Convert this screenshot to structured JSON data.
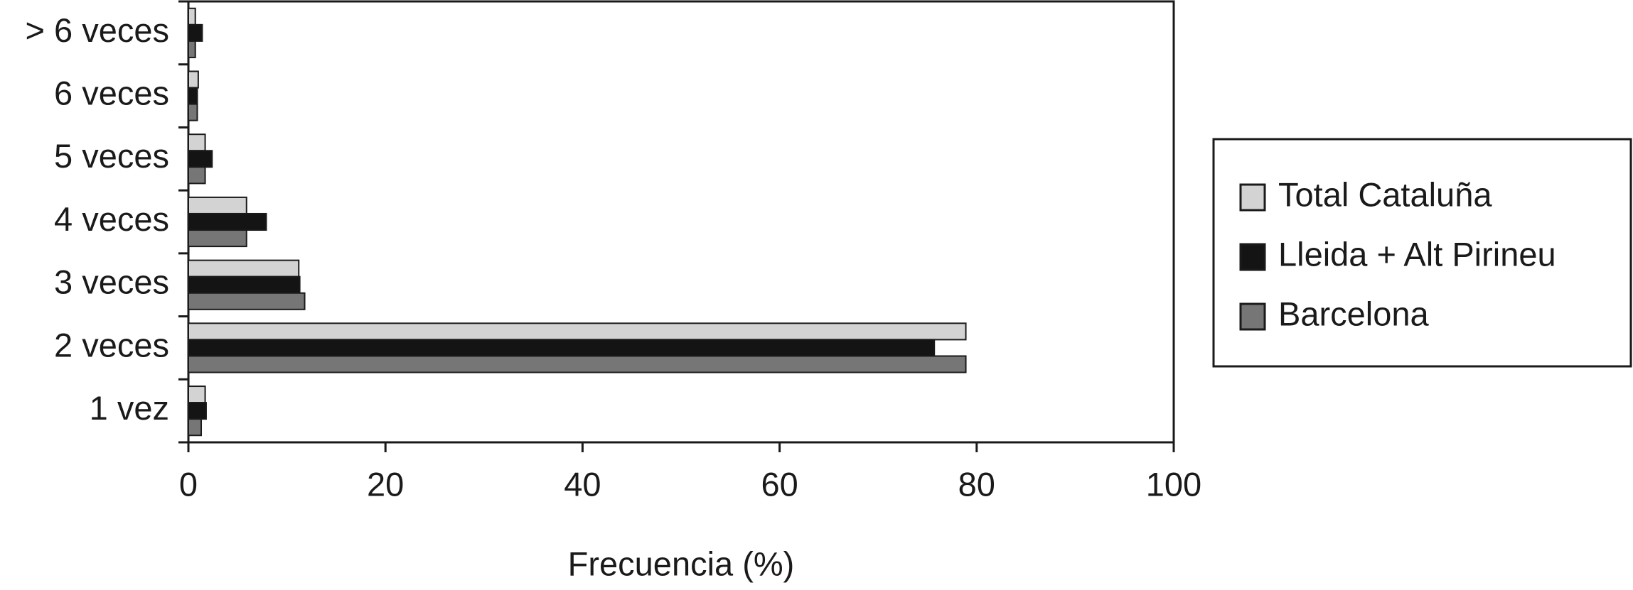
{
  "chart_data": {
    "type": "bar",
    "orientation": "horizontal",
    "x_label": "Frecuencia (%)",
    "categories": [
      "1 vez",
      "2 veces",
      "3 veces",
      "4 veces",
      "5 veces",
      "6 veces",
      "> 6 veces"
    ],
    "series": [
      {
        "name": "Total Cataluña",
        "color": "#d3d3d3",
        "values": [
          1.7,
          78.9,
          11.2,
          5.9,
          1.7,
          1.0,
          0.7
        ]
      },
      {
        "name": "Lleida + Alt Pirineu",
        "color": "#141414",
        "values": [
          1.8,
          75.7,
          11.3,
          7.9,
          2.4,
          0.9,
          1.4
        ]
      },
      {
        "name": "Barcelona",
        "color": "#767676",
        "values": [
          1.3,
          78.9,
          11.8,
          5.9,
          1.7,
          0.9,
          0.7
        ]
      }
    ],
    "xlim": [
      0,
      100
    ],
    "xticks": [
      0,
      20,
      40,
      60,
      80,
      100
    ],
    "legend": "right"
  }
}
